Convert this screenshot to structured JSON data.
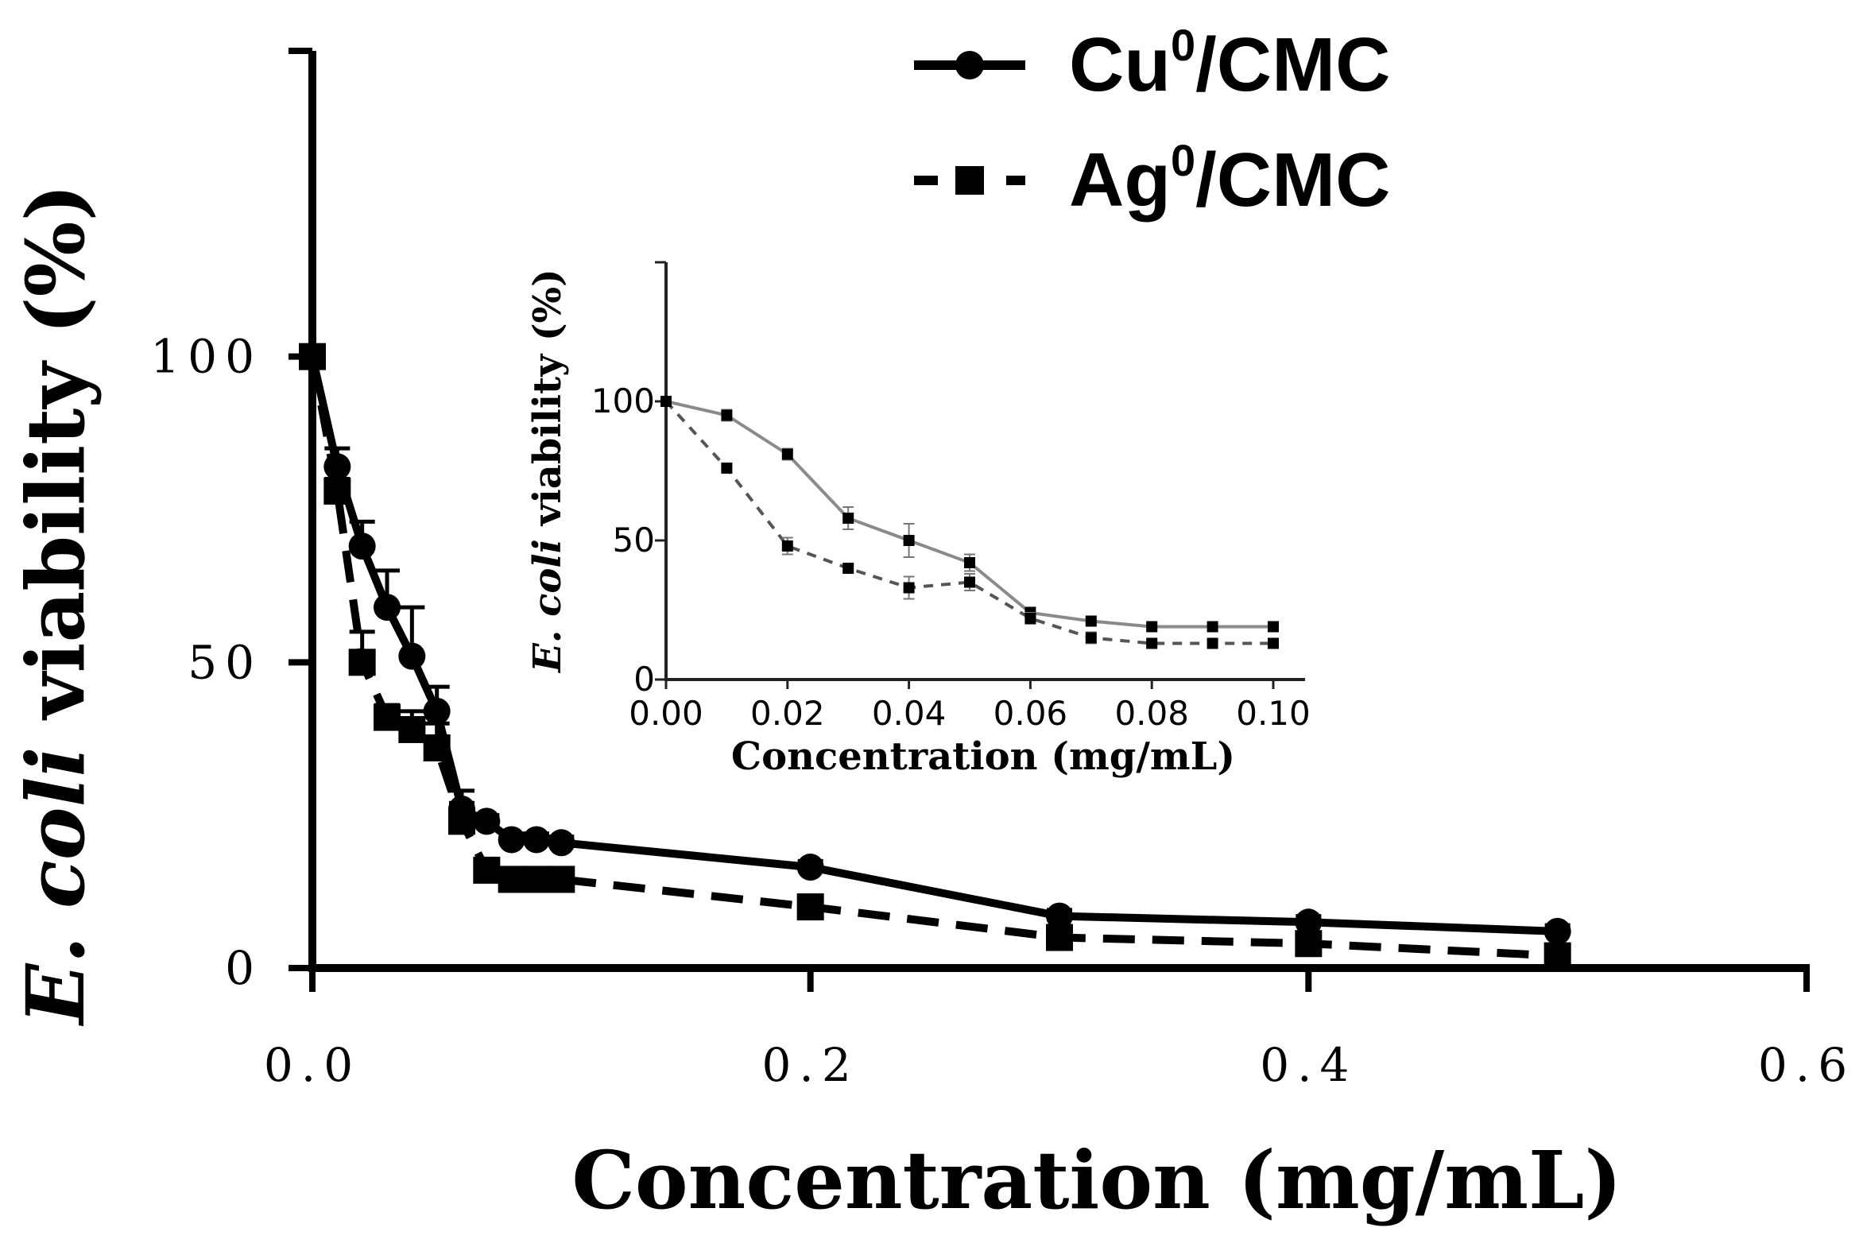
{
  "chart_data": [
    {
      "type": "line",
      "xlabel": "Concentration (mg/mL)",
      "ylabel": {
        "italic_part": "E. coli",
        "rest": " viability (%)"
      },
      "xlim": [
        0,
        0.6
      ],
      "ylim": [
        0,
        150
      ],
      "xticks": [
        "0.0",
        "0.2",
        "0.4",
        "0.6"
      ],
      "yticks": [
        "0",
        "50",
        "100"
      ],
      "grid": false,
      "legend_position": "top-right",
      "legend": [
        {
          "base": "Cu",
          "sup": "0",
          "suffix": "/CMC",
          "style": "solid",
          "marker": "circle"
        },
        {
          "base": "Ag",
          "sup": "0",
          "suffix": "/CMC",
          "style": "dashed",
          "marker": "square"
        }
      ],
      "series": [
        {
          "name": "Cu0/CMC",
          "x": [
            0,
            0.01,
            0.02,
            0.03,
            0.04,
            0.05,
            0.06,
            0.07,
            0.08,
            0.09,
            0.1,
            0.2,
            0.3,
            0.4,
            0.5
          ],
          "y": [
            100,
            82,
            69,
            59,
            51,
            42,
            26,
            24,
            21,
            21,
            20.5,
            16.5,
            8.5,
            7.5,
            6
          ],
          "err": [
            0,
            3,
            4,
            6,
            8,
            4,
            3,
            1,
            1,
            1,
            1,
            1,
            1,
            1,
            1
          ]
        },
        {
          "name": "Ag0/CMC",
          "x": [
            0,
            0.01,
            0.02,
            0.03,
            0.04,
            0.05,
            0.06,
            0.07,
            0.08,
            0.09,
            0.1,
            0.2,
            0.3,
            0.4,
            0.5
          ],
          "y": [
            100,
            78,
            50,
            41,
            39,
            36,
            24,
            16,
            14.5,
            14.5,
            14.5,
            10,
            5,
            4,
            2
          ],
          "err": [
            0,
            2,
            5,
            2,
            3,
            4,
            3,
            1,
            1,
            1,
            1,
            1,
            1,
            1,
            1
          ]
        }
      ]
    },
    {
      "type": "line",
      "role": "inset",
      "xlabel": "Concentration (mg/mL)",
      "ylabel": {
        "italic_part": "E. coli",
        "rest": " viability (%)"
      },
      "xlim": [
        0,
        0.1
      ],
      "ylim": [
        0,
        150
      ],
      "xticks": [
        "0.00",
        "0.02",
        "0.04",
        "0.06",
        "0.08",
        "0.10"
      ],
      "yticks": [
        "0",
        "50",
        "100"
      ],
      "grid": false,
      "series": [
        {
          "name": "Cu0/CMC",
          "x": [
            0,
            0.01,
            0.02,
            0.03,
            0.04,
            0.05,
            0.06,
            0.07,
            0.08,
            0.09,
            0.1
          ],
          "y": [
            100,
            95,
            81,
            58,
            50,
            42,
            24,
            21,
            19,
            19,
            19
          ],
          "err": [
            0,
            2,
            2,
            4,
            6,
            3,
            2,
            1,
            1,
            1,
            1
          ]
        },
        {
          "name": "Ag0/CMC",
          "x": [
            0,
            0.01,
            0.02,
            0.03,
            0.04,
            0.05,
            0.06,
            0.07,
            0.08,
            0.09,
            0.1
          ],
          "y": [
            100,
            76,
            48,
            40,
            33,
            35,
            22,
            15,
            13,
            13,
            13
          ],
          "err": [
            0,
            1,
            3,
            1,
            4,
            3,
            2,
            2,
            1,
            1,
            1
          ]
        }
      ]
    }
  ]
}
